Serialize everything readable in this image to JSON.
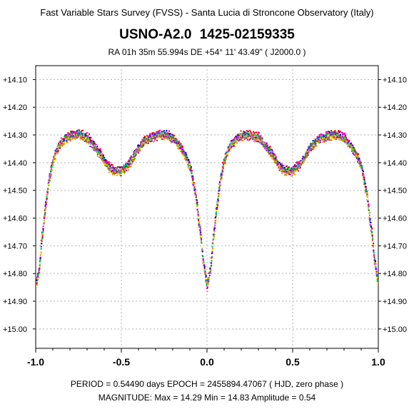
{
  "header": {
    "survey_title": "Fast Variable Stars Survey (FVSS) - Santa Lucia di Stroncone Observatory (Italy)",
    "star_name": "USNO-A2.0  1425-02159335",
    "coordinates": "RA  01h 35m 55.994s     DE   +54° 11' 43.49\"      ( J2000.0 )"
  },
  "footer": {
    "period_line": "PERIOD = 0.54490 days     EPOCH = 2455894.47067   ( HJD, zero phase )",
    "magnitude_line": "MAGNITUDE:   Max = 14.29    Min = 14.83    Amplitude = 0.54"
  },
  "chart_data": {
    "type": "scatter",
    "title": "USNO-A2.0  1425-02159335",
    "xlim": [
      -1.0,
      1.0
    ],
    "ylim": [
      15.07,
      14.05
    ],
    "y_inverted": true,
    "grid": true,
    "x_ticks": [
      "-1.0",
      "-0.5",
      "0.0",
      "0.5",
      "1.0"
    ],
    "x_tick_values": [
      -1.0,
      -0.5,
      0.0,
      0.5,
      1.0
    ],
    "y_ticks": [
      "+14.10",
      "+14.20",
      "+14.30",
      "+14.40",
      "+14.50",
      "+14.60",
      "+14.70",
      "+14.80",
      "+14.90",
      "+15.00"
    ],
    "y_tick_values": [
      14.1,
      14.2,
      14.3,
      14.4,
      14.5,
      14.6,
      14.7,
      14.8,
      14.9,
      15.0
    ],
    "light_curve_phase": [
      0.0,
      0.02,
      0.04,
      0.06,
      0.08,
      0.1,
      0.12,
      0.15,
      0.18,
      0.22,
      0.26,
      0.3,
      0.34,
      0.38,
      0.42,
      0.44,
      0.46,
      0.48,
      0.5,
      0.52,
      0.54,
      0.56,
      0.6,
      0.64,
      0.68,
      0.72,
      0.76,
      0.8,
      0.84,
      0.87,
      0.9,
      0.93,
      0.96,
      0.98,
      1.0
    ],
    "light_curve_mag": [
      14.85,
      14.79,
      14.66,
      14.55,
      14.46,
      14.4,
      14.36,
      14.33,
      14.31,
      14.3,
      14.3,
      14.31,
      14.34,
      14.37,
      14.41,
      14.42,
      14.43,
      14.43,
      14.43,
      14.42,
      14.41,
      14.39,
      14.35,
      14.32,
      14.31,
      14.3,
      14.3,
      14.31,
      14.34,
      14.37,
      14.41,
      14.5,
      14.64,
      14.76,
      14.84
    ],
    "scatter_mag": 0.015,
    "phase_step": 0.004,
    "series_colors": [
      "#ff0000",
      "#ff00ff",
      "#0000cc",
      "#00cccc",
      "#00cc00",
      "#ffff00",
      "#9900ff",
      "#ff8800"
    ]
  }
}
